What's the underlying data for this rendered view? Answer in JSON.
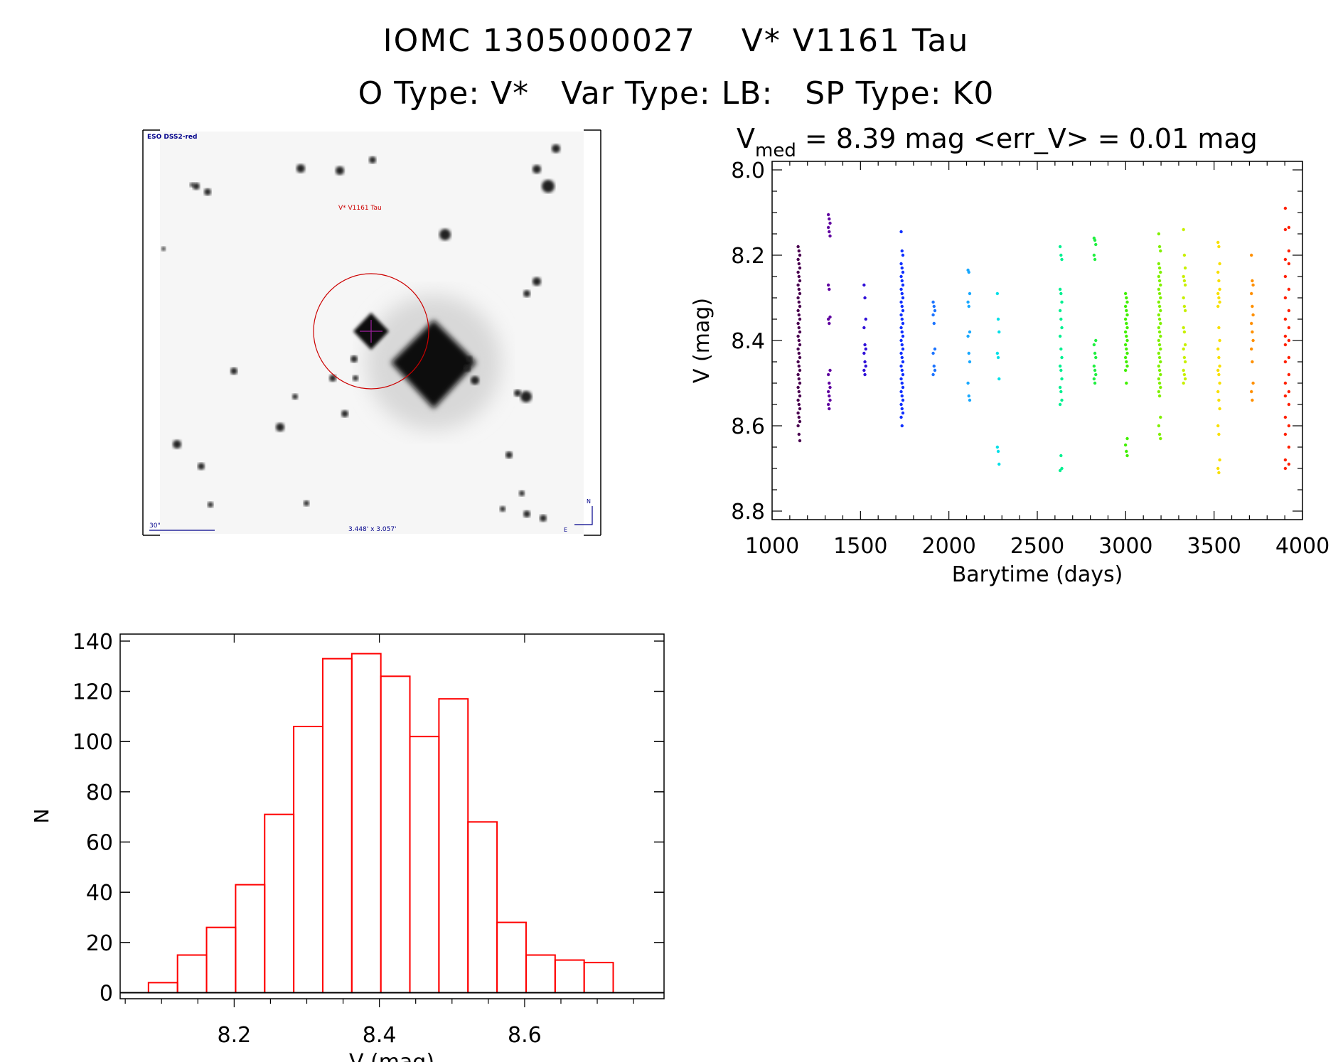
{
  "header": {
    "line1": "IOMC 1305000027    V* V1161 Tau",
    "line2": "O Type: V*   Var Type: LB:   SP Type: K0"
  },
  "sky_image": {
    "survey_label": "ESO DSS2-red",
    "target_label": "V* V1161 Tau",
    "scale_label": "30\"",
    "fov_label": "3.448' x 3.057'",
    "north_label": "N",
    "east_label": "E",
    "label_color": "#00008b",
    "target_color": "#cc0000"
  },
  "chart_data": [
    {
      "type": "scatter",
      "title_main": "V",
      "title_sub": "med",
      "title_rest": " = 8.39 mag <err_V> = 0.01 mag",
      "xlabel": "Barytime (days)",
      "ylabel": "V (mag)",
      "xlim": [
        1000,
        4000
      ],
      "ylim": [
        8.82,
        7.98
      ],
      "xticks": [
        "1000",
        "1500",
        "2000",
        "2500",
        "3000",
        "3500",
        "4000"
      ],
      "xtick_values": [
        1000,
        1500,
        2000,
        2500,
        3000,
        3500,
        4000
      ],
      "yticks": [
        "8.0",
        "8.2",
        "8.4",
        "8.6",
        "8.8"
      ],
      "ytick_values": [
        8.0,
        8.2,
        8.4,
        8.6,
        8.8
      ],
      "series": [
        {
          "x": 1152,
          "color": "#4a0050",
          "y": [
            8.18,
            8.19,
            8.2,
            8.21,
            8.22,
            8.23,
            8.24,
            8.25,
            8.26,
            8.27,
            8.28,
            8.29,
            8.3,
            8.31,
            8.32,
            8.33,
            8.34,
            8.35,
            8.36,
            8.37,
            8.38,
            8.39,
            8.4,
            8.41,
            8.42,
            8.43,
            8.44,
            8.45,
            8.46,
            8.47,
            8.48,
            8.49,
            8.5,
            8.51,
            8.52,
            8.53,
            8.54,
            8.55,
            8.56,
            8.57,
            8.58,
            8.59,
            8.6,
            8.62,
            8.635
          ]
        },
        {
          "x": 1323,
          "color": "#6000a0",
          "y": [
            8.105,
            8.115,
            8.125,
            8.135,
            8.145,
            8.155,
            8.27,
            8.28,
            8.345,
            8.35,
            8.36,
            8.47,
            8.48,
            8.5,
            8.51,
            8.52,
            8.53,
            8.54,
            8.55,
            8.56
          ]
        },
        {
          "x": 1525,
          "color": "#3010d8",
          "y": [
            8.27,
            8.3,
            8.35,
            8.37,
            8.41,
            8.42,
            8.43,
            8.45,
            8.46,
            8.47,
            8.48
          ]
        },
        {
          "x": 1735,
          "color": "#1030ff",
          "y": [
            8.145,
            8.19,
            8.2,
            8.22,
            8.23,
            8.24,
            8.25,
            8.26,
            8.27,
            8.28,
            8.29,
            8.3,
            8.31,
            8.32,
            8.33,
            8.34,
            8.35,
            8.36,
            8.37,
            8.38,
            8.39,
            8.4,
            8.41,
            8.42,
            8.43,
            8.44,
            8.45,
            8.46,
            8.47,
            8.48,
            8.49,
            8.5,
            8.51,
            8.52,
            8.53,
            8.54,
            8.55,
            8.56,
            8.57,
            8.58,
            8.6
          ]
        },
        {
          "x": 1916,
          "color": "#1c74ff",
          "y": [
            8.31,
            8.32,
            8.33,
            8.34,
            8.36,
            8.42,
            8.43,
            8.46,
            8.47,
            8.48
          ]
        },
        {
          "x": 2113,
          "color": "#18a8ff",
          "y": [
            8.235,
            8.24,
            8.29,
            8.31,
            8.32,
            8.38,
            8.39,
            8.43,
            8.45,
            8.5,
            8.53,
            8.54
          ]
        },
        {
          "x": 2279,
          "color": "#00e0e8",
          "y": [
            8.29,
            8.35,
            8.38,
            8.43,
            8.44,
            8.49,
            8.65,
            8.66,
            8.69
          ]
        },
        {
          "x": 2634,
          "color": "#00f090",
          "y": [
            8.18,
            8.2,
            8.21,
            8.28,
            8.29,
            8.31,
            8.33,
            8.35,
            8.37,
            8.39,
            8.42,
            8.44,
            8.46,
            8.47,
            8.49,
            8.51,
            8.52,
            8.54,
            8.55,
            8.67,
            8.7,
            8.705
          ]
        },
        {
          "x": 2826,
          "color": "#20f040",
          "y": [
            8.16,
            8.165,
            8.175,
            8.2,
            8.21,
            8.4,
            8.41,
            8.43,
            8.44,
            8.46,
            8.47,
            8.48,
            8.49,
            8.5
          ]
        },
        {
          "x": 3004,
          "color": "#40f000",
          "y": [
            8.29,
            8.3,
            8.31,
            8.32,
            8.33,
            8.34,
            8.35,
            8.36,
            8.37,
            8.38,
            8.39,
            8.4,
            8.41,
            8.42,
            8.43,
            8.44,
            8.45,
            8.46,
            8.47,
            8.5,
            8.63,
            8.645,
            8.66,
            8.67
          ]
        },
        {
          "x": 3192,
          "color": "#80f000",
          "y": [
            8.15,
            8.18,
            8.19,
            8.22,
            8.23,
            8.24,
            8.25,
            8.26,
            8.27,
            8.28,
            8.29,
            8.3,
            8.31,
            8.32,
            8.33,
            8.34,
            8.35,
            8.36,
            8.37,
            8.38,
            8.39,
            8.4,
            8.41,
            8.42,
            8.43,
            8.44,
            8.45,
            8.46,
            8.47,
            8.48,
            8.49,
            8.5,
            8.51,
            8.52,
            8.53,
            8.58,
            8.6,
            8.62,
            8.63
          ]
        },
        {
          "x": 3332,
          "color": "#c8f000",
          "y": [
            8.14,
            8.2,
            8.23,
            8.25,
            8.26,
            8.27,
            8.3,
            8.32,
            8.33,
            8.37,
            8.38,
            8.41,
            8.42,
            8.44,
            8.45,
            8.47,
            8.48,
            8.49,
            8.5
          ]
        },
        {
          "x": 3527,
          "color": "#f8e000",
          "y": [
            8.17,
            8.18,
            8.22,
            8.24,
            8.26,
            8.28,
            8.29,
            8.3,
            8.31,
            8.32,
            8.37,
            8.4,
            8.42,
            8.44,
            8.46,
            8.47,
            8.48,
            8.5,
            8.52,
            8.54,
            8.56,
            8.6,
            8.62,
            8.68,
            8.7,
            8.71
          ]
        },
        {
          "x": 3716,
          "color": "#ff9000",
          "y": [
            8.2,
            8.26,
            8.27,
            8.29,
            8.32,
            8.34,
            8.36,
            8.38,
            8.4,
            8.42,
            8.45,
            8.5,
            8.52,
            8.54
          ]
        },
        {
          "x": 3911,
          "color": "#ff2000",
          "y": [
            8.09,
            8.135,
            8.14,
            8.19,
            8.21,
            8.22,
            8.25,
            8.28,
            8.3,
            8.33,
            8.35,
            8.37,
            8.39,
            8.4,
            8.41,
            8.44,
            8.45,
            8.48,
            8.5,
            8.52,
            8.53,
            8.55,
            8.58,
            8.6,
            8.62,
            8.65,
            8.68,
            8.69,
            8.7
          ]
        }
      ]
    },
    {
      "type": "bar",
      "xlabel": "V (mag)",
      "ylabel": "N",
      "xlim": [
        8.043,
        8.792
      ],
      "ylim": [
        -2.4,
        142.8
      ],
      "bin_width": 0.04,
      "bin_starts": [
        8.082,
        8.122,
        8.162,
        8.202,
        8.242,
        8.282,
        8.322,
        8.362,
        8.402,
        8.442,
        8.482,
        8.522,
        8.562,
        8.602,
        8.642,
        8.682
      ],
      "values": [
        4,
        15,
        26,
        43,
        71,
        106,
        133,
        135,
        126,
        102,
        117,
        68,
        28,
        15,
        13,
        12
      ],
      "bar_color": "#ff0000",
      "xticks": [
        "8.2",
        "8.4",
        "8.6"
      ],
      "xtick_values": [
        8.2,
        8.4,
        8.6
      ],
      "yticks": [
        "0",
        "20",
        "40",
        "60",
        "80",
        "100",
        "120",
        "140"
      ],
      "ytick_values": [
        0,
        20,
        40,
        60,
        80,
        100,
        120,
        140
      ]
    }
  ]
}
